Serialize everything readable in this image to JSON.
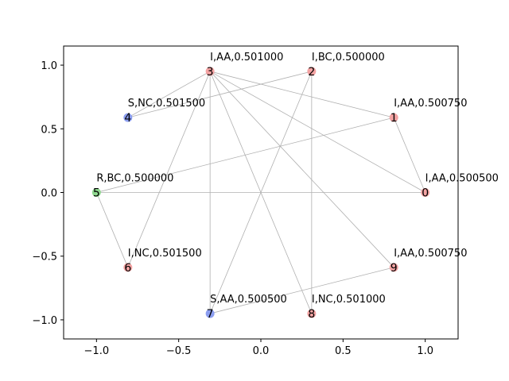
{
  "chart_data": {
    "type": "network",
    "title": "",
    "xlabel": "",
    "ylabel": "",
    "xlim": [
      -1.2,
      1.2
    ],
    "ylim": [
      -1.15,
      1.15
    ],
    "xticks": [
      -1.0,
      -0.5,
      0.0,
      0.5,
      1.0
    ],
    "xtick_labels": [
      "−1.0",
      "−0.5",
      "0.0",
      "0.5",
      "1.0"
    ],
    "yticks": [
      -1.0,
      -0.5,
      0.0,
      0.5,
      1.0
    ],
    "ytick_labels": [
      "−1.0",
      "−0.5",
      "0.0",
      "0.5",
      "1.0"
    ],
    "grid": false,
    "node_colors": {
      "I": "#f4a3a3",
      "S": "#8c9ef0",
      "R": "#8fd88f"
    },
    "nodes": [
      {
        "id": "0",
        "x": 1.0,
        "y": 0.0,
        "state": "I",
        "label": "I,AA,0.500500"
      },
      {
        "id": "1",
        "x": 0.809,
        "y": 0.588,
        "state": "I",
        "label": "I,AA,0.500750"
      },
      {
        "id": "2",
        "x": 0.309,
        "y": 0.951,
        "state": "I",
        "label": "I,BC,0.500000"
      },
      {
        "id": "3",
        "x": -0.309,
        "y": 0.951,
        "state": "I",
        "label": "I,AA,0.501000"
      },
      {
        "id": "4",
        "x": -0.809,
        "y": 0.588,
        "state": "S",
        "label": "S,NC,0.501500"
      },
      {
        "id": "5",
        "x": -1.0,
        "y": 0.0,
        "state": "R",
        "label": "R,BC,0.500000"
      },
      {
        "id": "6",
        "x": -0.809,
        "y": -0.588,
        "state": "I",
        "label": "I,NC,0.501500"
      },
      {
        "id": "7",
        "x": -0.309,
        "y": -0.951,
        "state": "S",
        "label": "S,AA,0.500500"
      },
      {
        "id": "8",
        "x": 0.309,
        "y": -0.951,
        "state": "I",
        "label": "I,NC,0.501000"
      },
      {
        "id": "9",
        "x": 0.809,
        "y": -0.588,
        "state": "I",
        "label": "I,AA,0.500750"
      }
    ],
    "edges": [
      [
        "3",
        "1"
      ],
      [
        "3",
        "0"
      ],
      [
        "3",
        "9"
      ],
      [
        "3",
        "8"
      ],
      [
        "3",
        "7"
      ],
      [
        "3",
        "6"
      ],
      [
        "3",
        "4"
      ],
      [
        "2",
        "4"
      ],
      [
        "2",
        "8"
      ],
      [
        "2",
        "7"
      ],
      [
        "1",
        "5"
      ],
      [
        "1",
        "0"
      ],
      [
        "0",
        "5"
      ],
      [
        "5",
        "6"
      ],
      [
        "7",
        "9"
      ]
    ]
  }
}
